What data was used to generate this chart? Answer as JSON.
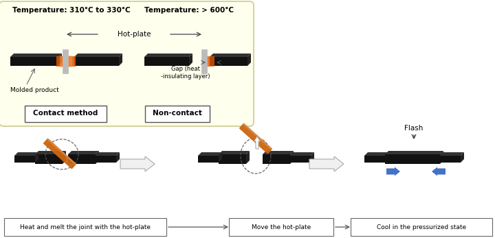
{
  "bg_color": "#ffffff",
  "yellow_box_color": "#ffffee",
  "black_color": "#111111",
  "orange_color": "#cc6611",
  "blue_color": "#4472c4",
  "text_temp1": "Temperature: 310°C to 330°C",
  "text_temp2": "Temperature: > 600°C",
  "text_hotplate": "Hot-plate",
  "text_molded": "Molded product",
  "text_gap": "Gap (heat\n-insulating layer)",
  "text_contact": "Contact method",
  "text_noncontact": "Non-contact",
  "text_step1": "Heat and melt the joint with the hot-plate",
  "text_step2": "Move the hot-plate",
  "text_step3": "Cool in the pressurized state",
  "text_flash": "Flash"
}
